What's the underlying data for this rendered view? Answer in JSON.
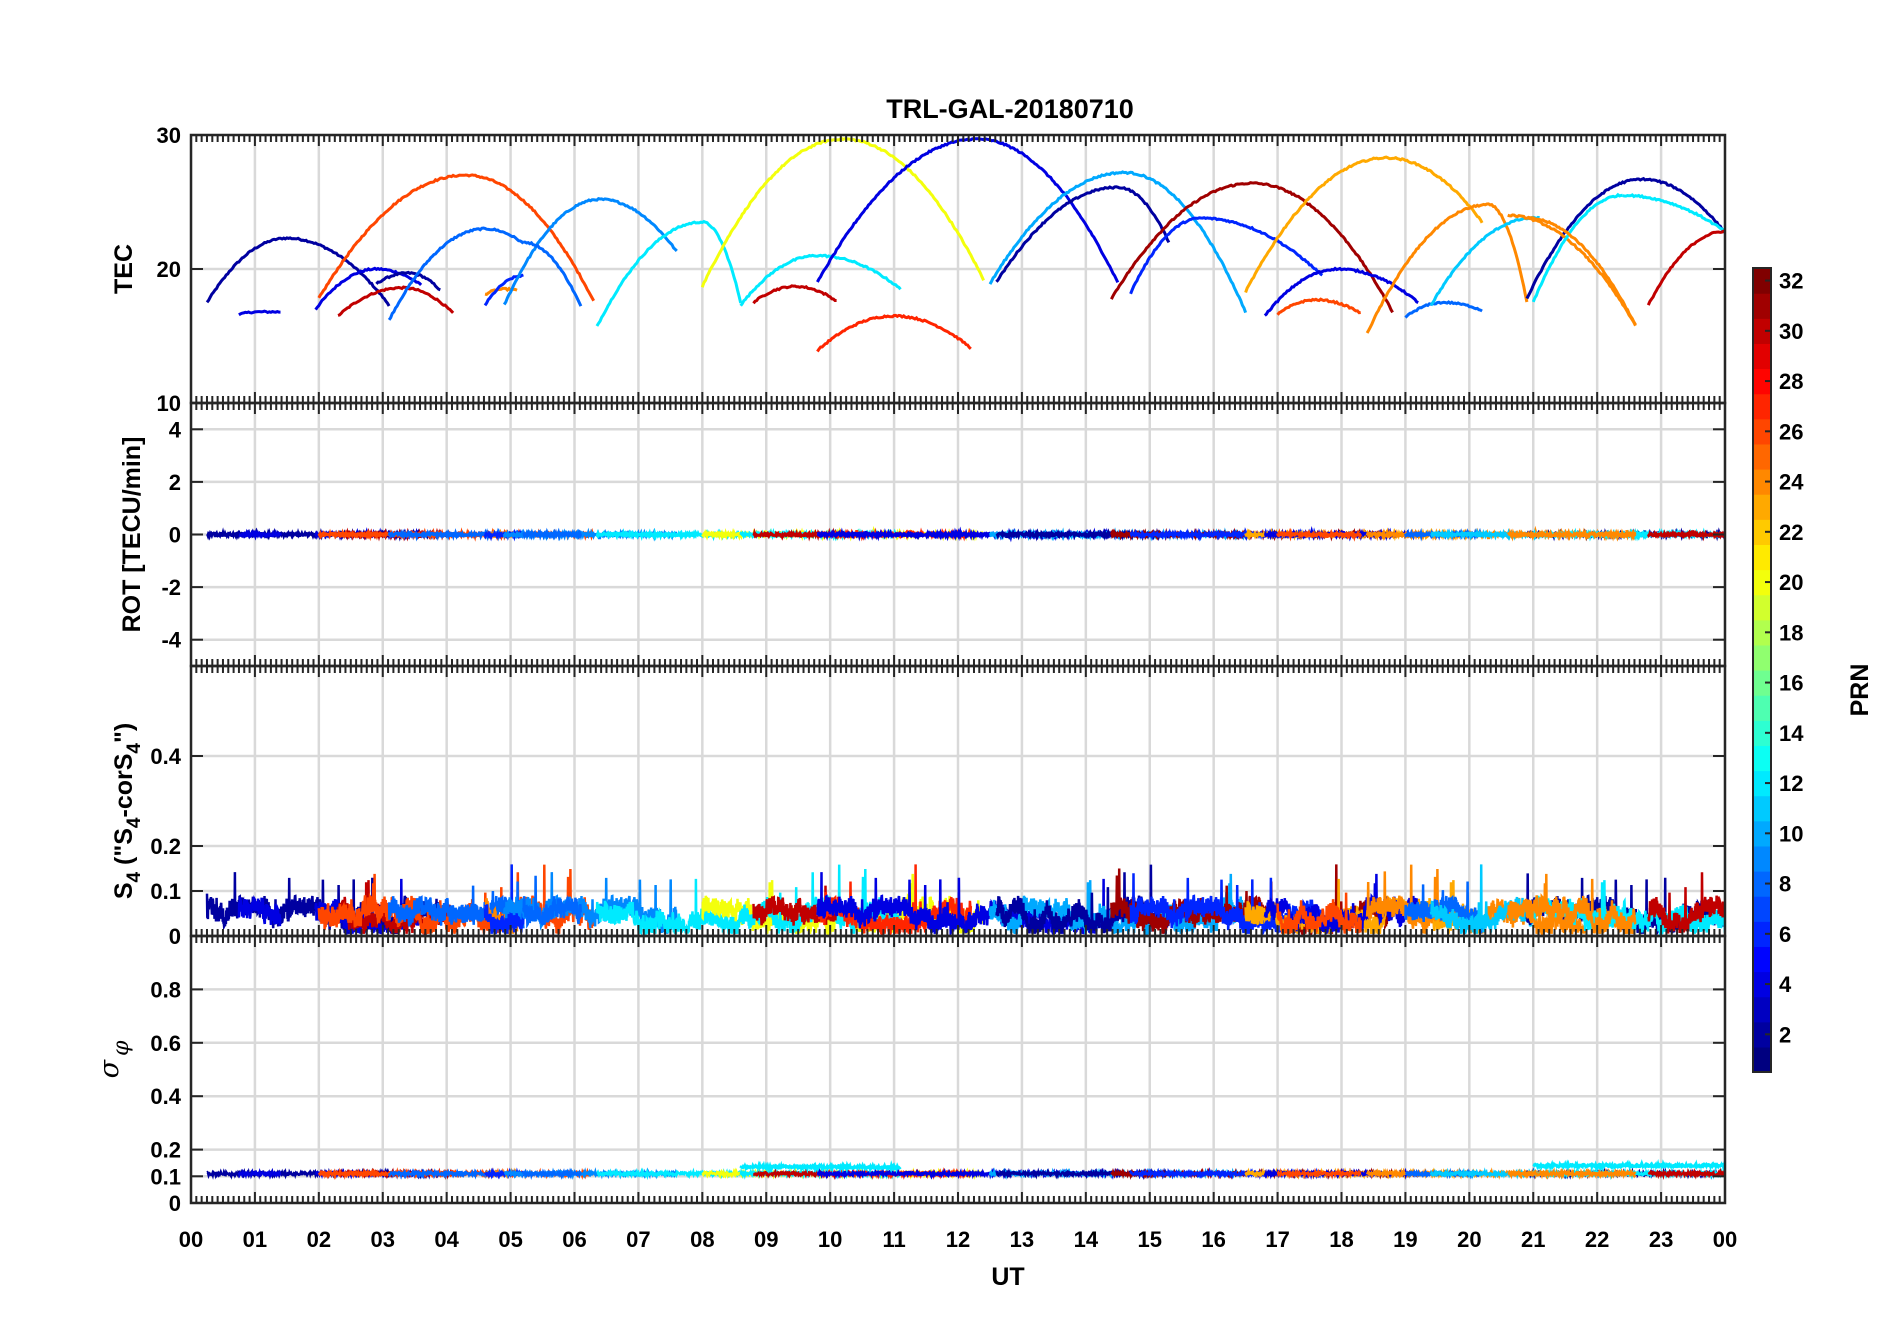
{
  "chart_data": {
    "type": "line",
    "title": "TRL-GAL-20180710",
    "xlabel": "UT",
    "x_ticks": [
      "00",
      "01",
      "02",
      "03",
      "04",
      "05",
      "06",
      "07",
      "08",
      "09",
      "10",
      "11",
      "12",
      "13",
      "14",
      "15",
      "16",
      "17",
      "18",
      "19",
      "20",
      "21",
      "22",
      "23",
      "00"
    ],
    "xlim": [
      0,
      24
    ],
    "colorbar": {
      "label": "PRN",
      "range": [
        1,
        32
      ],
      "ticks": [
        "2",
        "4",
        "6",
        "8",
        "10",
        "12",
        "14",
        "16",
        "18",
        "20",
        "22",
        "24",
        "26",
        "28",
        "30",
        "32"
      ],
      "colormap": "jet"
    },
    "panels": [
      {
        "id": "tec",
        "ylabel": "TEC",
        "ylim": [
          10,
          30
        ],
        "yticks": [
          "10",
          "20",
          "30"
        ],
        "arcs": [
          {
            "prn": 2,
            "t0": 0.25,
            "t1": 3.1,
            "peak_t": 1.5,
            "peak": 22.3,
            "start": 17.5,
            "end": 17.3
          },
          {
            "prn": 4,
            "t0": 0.75,
            "t1": 1.4,
            "peak_t": 1.05,
            "peak": 16.8,
            "start": 16.6,
            "end": 16.8
          },
          {
            "prn": 4,
            "t0": 1.95,
            "t1": 3.6,
            "peak_t": 2.9,
            "peak": 20.0,
            "start": 17.0,
            "end": 18.8
          },
          {
            "prn": 2,
            "t0": 2.9,
            "t1": 3.9,
            "peak_t": 3.4,
            "peak": 19.7,
            "start": 18.9,
            "end": 18.4
          },
          {
            "prn": 30,
            "t0": 2.3,
            "t1": 4.1,
            "peak_t": 3.3,
            "peak": 18.6,
            "start": 16.5,
            "end": 16.7
          },
          {
            "prn": 26,
            "t0": 2.0,
            "t1": 6.3,
            "peak_t": 4.3,
            "peak": 27.0,
            "start": 17.8,
            "end": 17.6
          },
          {
            "prn": 8,
            "t0": 3.1,
            "t1": 5.2,
            "peak_t": 4.6,
            "peak": 23.0,
            "start": 16.2,
            "end": 21.9
          },
          {
            "prn": 24,
            "t0": 4.6,
            "t1": 5.1,
            "peak_t": 4.9,
            "peak": 18.5,
            "start": 18.1,
            "end": 18.4
          },
          {
            "prn": 6,
            "t0": 4.6,
            "t1": 5.2,
            "peak_t": 5.2,
            "peak": 19.5,
            "start": 17.3,
            "end": 19.5
          },
          {
            "prn": 9,
            "t0": 4.9,
            "t1": 7.6,
            "peak_t": 6.4,
            "peak": 25.2,
            "start": 17.3,
            "end": 21.3
          },
          {
            "prn": 8,
            "t0": 5.2,
            "t1": 6.1,
            "peak_t": 5.2,
            "peak": 22.0,
            "start": 22.0,
            "end": 17.2
          },
          {
            "prn": 12,
            "t0": 6.35,
            "t1": 8.6,
            "peak_t": 8.0,
            "peak": 23.5,
            "start": 15.7,
            "end": 17.5
          },
          {
            "prn": 20,
            "t0": 8.0,
            "t1": 12.4,
            "peak_t": 10.2,
            "peak": 29.7,
            "start": 18.7,
            "end": 19.2
          },
          {
            "prn": 12,
            "t0": 8.6,
            "t1": 11.1,
            "peak_t": 9.8,
            "peak": 21.0,
            "start": 17.3,
            "end": 18.5
          },
          {
            "prn": 30,
            "t0": 8.8,
            "t1": 10.1,
            "peak_t": 9.45,
            "peak": 18.7,
            "start": 17.5,
            "end": 17.6
          },
          {
            "prn": 27,
            "t0": 9.8,
            "t1": 12.2,
            "peak_t": 11.0,
            "peak": 16.5,
            "start": 13.9,
            "end": 14.1
          },
          {
            "prn": 4,
            "t0": 9.8,
            "t1": 14.5,
            "peak_t": 12.3,
            "peak": 29.7,
            "start": 19.0,
            "end": 19.0
          },
          {
            "prn": 10,
            "t0": 12.5,
            "t1": 16.5,
            "peak_t": 14.6,
            "peak": 27.2,
            "start": 18.9,
            "end": 16.8
          },
          {
            "prn": 2,
            "t0": 12.6,
            "t1": 15.3,
            "peak_t": 14.5,
            "peak": 26.1,
            "start": 19.0,
            "end": 22.0
          },
          {
            "prn": 31,
            "t0": 14.4,
            "t1": 18.8,
            "peak_t": 16.6,
            "peak": 26.4,
            "start": 17.8,
            "end": 16.8
          },
          {
            "prn": 6,
            "t0": 14.7,
            "t1": 17.7,
            "peak_t": 15.8,
            "peak": 23.8,
            "start": 18.2,
            "end": 19.5
          },
          {
            "prn": 23,
            "t0": 16.5,
            "t1": 20.2,
            "peak_t": 18.7,
            "peak": 28.3,
            "start": 18.3,
            "end": 23.5
          },
          {
            "prn": 4,
            "t0": 16.8,
            "t1": 19.2,
            "peak_t": 17.95,
            "peak": 20.0,
            "start": 16.5,
            "end": 17.5
          },
          {
            "prn": 26,
            "t0": 17.0,
            "t1": 18.3,
            "peak_t": 17.6,
            "peak": 17.7,
            "start": 16.6,
            "end": 16.7
          },
          {
            "prn": 24,
            "t0": 18.4,
            "t1": 20.9,
            "peak_t": 20.3,
            "peak": 24.8,
            "start": 15.2,
            "end": 17.5
          },
          {
            "prn": 8,
            "t0": 19.0,
            "t1": 20.2,
            "peak_t": 19.6,
            "peak": 17.5,
            "start": 16.4,
            "end": 16.9
          },
          {
            "prn": 11,
            "t0": 19.4,
            "t1": 21.1,
            "peak_t": 21.0,
            "peak": 23.8,
            "start": 17.3,
            "end": 23.8
          },
          {
            "prn": 2,
            "t0": 20.9,
            "t1": 24.0,
            "peak_t": 22.7,
            "peak": 26.7,
            "start": 17.8,
            "end": 22.7
          },
          {
            "prn": 24,
            "t0": 20.6,
            "t1": 22.6,
            "peak_t": 20.6,
            "peak": 24.0,
            "start": 24.0,
            "end": 15.8
          },
          {
            "prn": 12,
            "t0": 21.0,
            "t1": 22.4,
            "peak_t": 22.4,
            "peak": 25.5,
            "start": 17.5,
            "end": 25.5
          },
          {
            "prn": 12,
            "t0": 22.4,
            "t1": 24.0,
            "peak_t": 22.4,
            "peak": 25.5,
            "start": 25.5,
            "end": 22.8
          },
          {
            "prn": 24,
            "t0": 20.9,
            "t1": 22.6,
            "peak_t": 20.9,
            "peak": 23.8,
            "start": 23.8,
            "end": 15.8
          },
          {
            "prn": 30,
            "t0": 22.8,
            "t1": 24.0,
            "peak_t": 24.0,
            "peak": 22.8,
            "start": 17.3,
            "end": 22.8
          }
        ]
      },
      {
        "id": "rot",
        "ylabel": "ROT [TECU/min]",
        "ylim": [
          -5,
          5
        ],
        "yticks": [
          "-4",
          "-2",
          "0",
          "2",
          "4"
        ],
        "level": 0.0,
        "noise": 0.05
      },
      {
        "id": "s4",
        "ylabel": "S4 (\"S4-corS4\")",
        "ylim": [
          0,
          0.6
        ],
        "yticks": [
          "0",
          "0.1",
          "0.2",
          "0.4"
        ],
        "level_range": [
          0.02,
          0.09
        ],
        "max_spike": 0.16
      },
      {
        "id": "sigma",
        "ylabel": "σ φ",
        "ylim": [
          0,
          1
        ],
        "yticks": [
          "0",
          "0.1",
          "0.2",
          "0.4",
          "0.6",
          "0.8"
        ],
        "level": 0.11,
        "elevated_segments": [
          {
            "prn": 12,
            "t0": 8.6,
            "t1": 11.1,
            "level": 0.135
          },
          {
            "prn": 12,
            "t0": 21.0,
            "t1": 24.0,
            "level": 0.14
          }
        ]
      }
    ]
  }
}
